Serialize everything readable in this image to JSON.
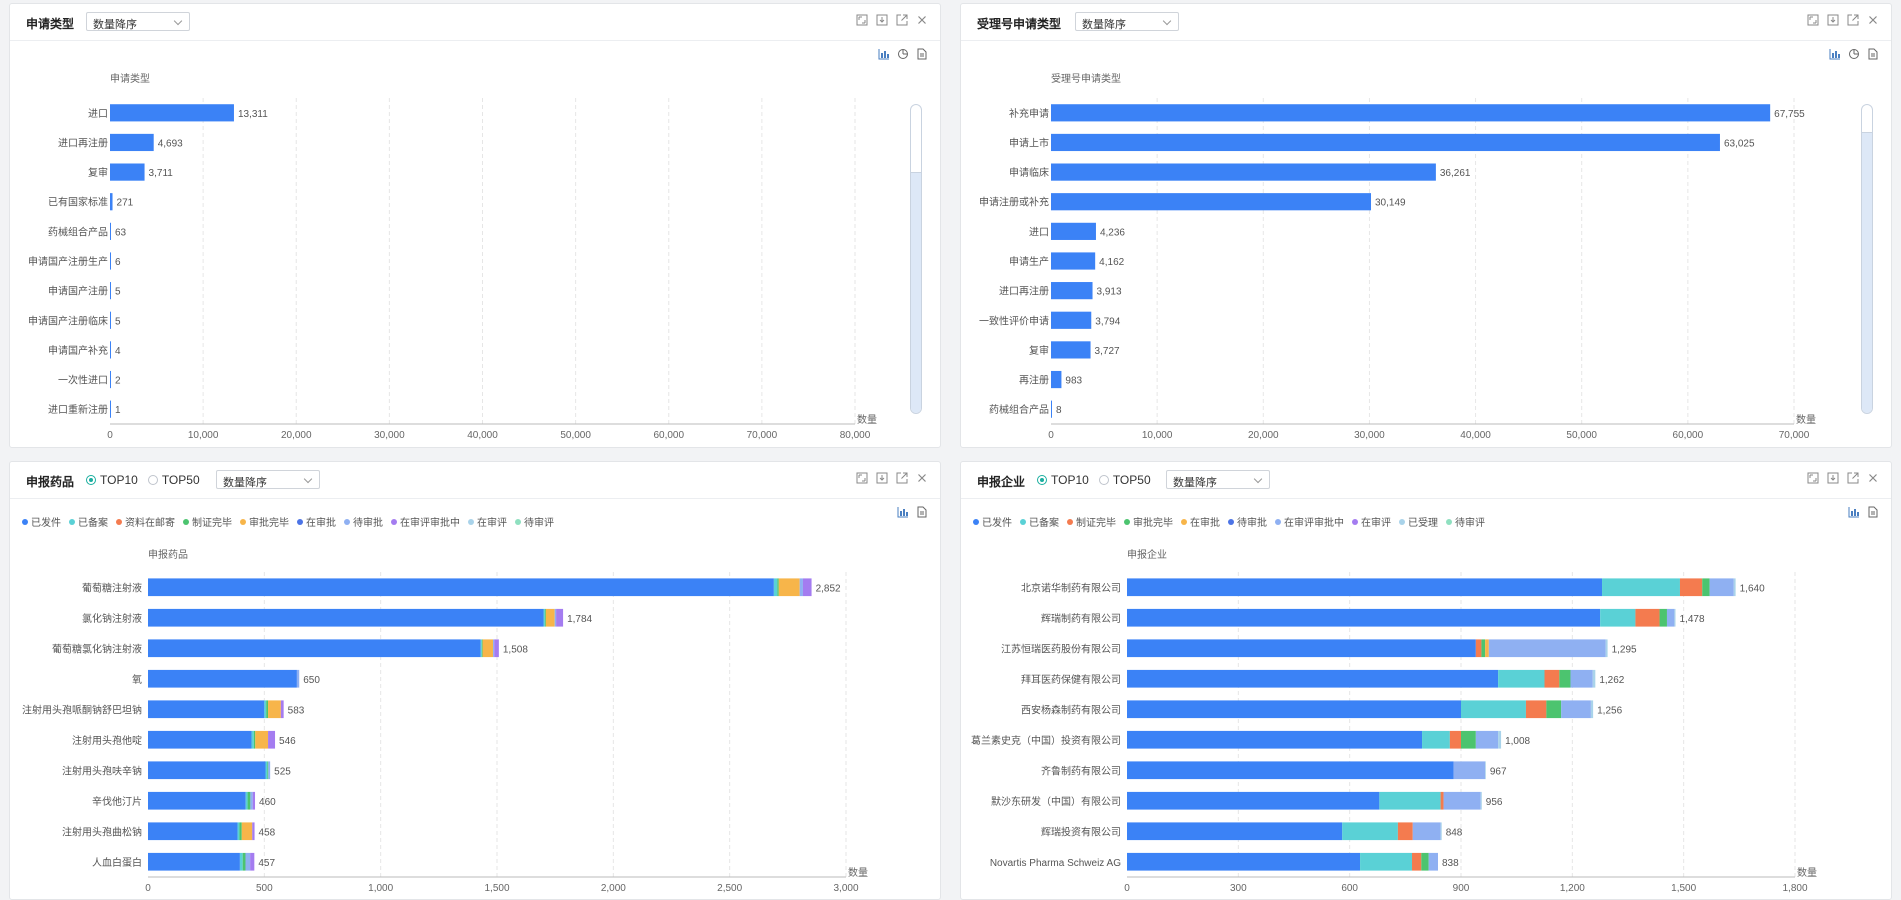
{
  "colors": {
    "primary_bar": "#3b82f6",
    "axis": "#999999",
    "grid": "#e6e6e6",
    "radio_active": "#1aae9f",
    "toolbar_icon": "#4a7fc1"
  },
  "icons": {
    "header": [
      "fullscreen-icon",
      "download-icon",
      "external-link-icon",
      "close-icon"
    ],
    "toolbar_with_pie": [
      "bar-chart-icon",
      "pie-chart-icon",
      "document-icon"
    ],
    "toolbar": [
      "bar-chart-icon",
      "document-icon"
    ]
  },
  "panels": {
    "p1": {
      "title": "申请类型",
      "sort": "数量降序"
    },
    "p2": {
      "title": "受理号申请类型",
      "sort": "数量降序"
    },
    "p3": {
      "title": "申报药品",
      "radio1": "TOP10",
      "radio2": "TOP50",
      "selected": "TOP10",
      "sort": "数量降序"
    },
    "p4": {
      "title": "申报企业",
      "radio1": "TOP10",
      "radio2": "TOP50",
      "selected": "TOP10",
      "sort": "数量降序"
    }
  },
  "chart_data": [
    {
      "type": "bar",
      "orientation": "horizontal",
      "ylabel": "申请类型",
      "xlabel": "数量",
      "xlim": [
        0,
        80000
      ],
      "xticks": [
        0,
        10000,
        20000,
        30000,
        40000,
        50000,
        60000,
        70000,
        80000
      ],
      "grid": true,
      "categories": [
        "进口",
        "进口再注册",
        "复审",
        "已有国家标准",
        "药械组合产品",
        "申请国产注册生产",
        "申请国产注册",
        "申请国产注册临床",
        "申请国产补充",
        "一次性进口",
        "进口重新注册"
      ],
      "values": [
        13311,
        4693,
        3711,
        271,
        63,
        6,
        5,
        5,
        4,
        2,
        1
      ]
    },
    {
      "type": "bar",
      "orientation": "horizontal",
      "ylabel": "受理号申请类型",
      "xlabel": "数量",
      "xlim": [
        0,
        70000
      ],
      "xticks": [
        0,
        10000,
        20000,
        30000,
        40000,
        50000,
        60000,
        70000
      ],
      "grid": true,
      "categories": [
        "补充申请",
        "申请上市",
        "申请临床",
        "申请注册或补充",
        "进口",
        "申请生产",
        "进口再注册",
        "一致性评价申请",
        "复审",
        "再注册",
        "药械组合产品"
      ],
      "values": [
        67755,
        63025,
        36261,
        30149,
        4236,
        4162,
        3913,
        3794,
        3727,
        983,
        8
      ]
    },
    {
      "type": "bar",
      "orientation": "horizontal",
      "stacked": true,
      "ylabel": "申报药品",
      "xlabel": "数量",
      "xlim": [
        0,
        3000
      ],
      "xticks": [
        0,
        500,
        1000,
        1500,
        2000,
        2500,
        3000
      ],
      "grid": true,
      "legend_position": "top-left",
      "categories": [
        "葡萄糖注射液",
        "氯化钠注射液",
        "葡萄糖氯化钠注射液",
        "氧",
        "注射用头孢哌酮钠舒巴坦钠",
        "注射用头孢他啶",
        "注射用头孢呋辛钠",
        "辛伐他汀片",
        "注射用头孢曲松钠",
        "人血白蛋白"
      ],
      "totals": [
        2852,
        1784,
        1508,
        650,
        583,
        546,
        525,
        460,
        458,
        457
      ],
      "series": [
        {
          "name": "已发件",
          "color": "#3b82f6",
          "values": [
            2690,
            1700,
            1430,
            640,
            500,
            445,
            505,
            420,
            385,
            395
          ]
        },
        {
          "name": "已备案",
          "color": "#5ad1d6",
          "values": [
            15,
            6,
            5,
            0,
            8,
            10,
            8,
            8,
            8,
            12
          ]
        },
        {
          "name": "资料在邮寄",
          "color": "#f47b4f",
          "values": [
            0,
            0,
            0,
            0,
            0,
            0,
            0,
            0,
            0,
            0
          ]
        },
        {
          "name": "制证完毕",
          "color": "#4cc46f",
          "values": [
            6,
            4,
            3,
            0,
            8,
            6,
            4,
            12,
            10,
            12
          ]
        },
        {
          "name": "审批完毕",
          "color": "#f7b54a",
          "values": [
            90,
            38,
            45,
            0,
            55,
            55,
            0,
            0,
            45,
            0
          ]
        },
        {
          "name": "在审批",
          "color": "#4c74e6",
          "values": [
            0,
            0,
            0,
            0,
            0,
            0,
            0,
            0,
            0,
            0
          ]
        },
        {
          "name": "待审批",
          "color": "#8fb0f2",
          "values": [
            14,
            6,
            5,
            10,
            0,
            0,
            8,
            10,
            0,
            20
          ]
        },
        {
          "name": "在审评审批中",
          "color": "#a47cf0",
          "values": [
            37,
            30,
            20,
            0,
            12,
            30,
            0,
            10,
            10,
            18
          ]
        },
        {
          "name": "在审评",
          "color": "#a9d3ea",
          "values": [
            0,
            0,
            0,
            0,
            0,
            0,
            0,
            0,
            0,
            0
          ]
        },
        {
          "name": "待审评",
          "color": "#8fe0c0",
          "values": [
            0,
            0,
            0,
            0,
            0,
            0,
            0,
            0,
            0,
            0
          ]
        }
      ]
    },
    {
      "type": "bar",
      "orientation": "horizontal",
      "stacked": true,
      "ylabel": "申报企业",
      "xlabel": "数量",
      "xlim": [
        0,
        1800
      ],
      "xticks": [
        0,
        300,
        600,
        900,
        1200,
        1500,
        1800
      ],
      "grid": true,
      "legend_position": "top-left",
      "categories": [
        "北京诺华制药有限公司",
        "辉瑞制药有限公司",
        "江苏恒瑞医药股份有限公司",
        "拜耳医药保健有限公司",
        "西安杨森制药有限公司",
        "葛兰素史克（中国）投资有限公司",
        "齐鲁制药有限公司",
        "默沙东研发（中国）有限公司",
        "辉瑞投资有限公司",
        "Novartis Pharma Schweiz AG"
      ],
      "totals": [
        1640,
        1478,
        1295,
        1262,
        1256,
        1008,
        967,
        956,
        848,
        838
      ],
      "series": [
        {
          "name": "已发件",
          "color": "#3b82f6",
          "values": [
            1280,
            1275,
            940,
            1000,
            900,
            795,
            880,
            680,
            580,
            628
          ]
        },
        {
          "name": "已备案",
          "color": "#5ad1d6",
          "values": [
            210,
            95,
            0,
            125,
            175,
            75,
            0,
            165,
            150,
            140
          ]
        },
        {
          "name": "制证完毕",
          "color": "#f47b4f",
          "values": [
            60,
            65,
            15,
            40,
            55,
            30,
            0,
            8,
            40,
            25
          ]
        },
        {
          "name": "审批完毕",
          "color": "#4cc46f",
          "values": [
            20,
            20,
            10,
            30,
            40,
            40,
            0,
            0,
            0,
            20
          ]
        },
        {
          "name": "在审批",
          "color": "#f7b54a",
          "values": [
            0,
            0,
            10,
            0,
            0,
            0,
            0,
            0,
            0,
            0
          ]
        },
        {
          "name": "待审批",
          "color": "#4c74e6",
          "values": [
            0,
            0,
            0,
            0,
            0,
            0,
            0,
            0,
            0,
            0
          ]
        },
        {
          "name": "在审评审批中",
          "color": "#8fb0f2",
          "values": [
            65,
            20,
            315,
            60,
            80,
            60,
            85,
            100,
            75,
            25
          ]
        },
        {
          "name": "在审评",
          "color": "#a47cf0",
          "values": [
            0,
            0,
            0,
            0,
            0,
            0,
            0,
            0,
            0,
            0
          ]
        },
        {
          "name": "已受理",
          "color": "#a9d3ea",
          "values": [
            5,
            3,
            5,
            7,
            6,
            8,
            2,
            3,
            3,
            0
          ]
        },
        {
          "name": "待审评",
          "color": "#8fe0c0",
          "values": [
            0,
            0,
            0,
            0,
            0,
            0,
            0,
            0,
            0,
            0
          ]
        }
      ]
    }
  ]
}
